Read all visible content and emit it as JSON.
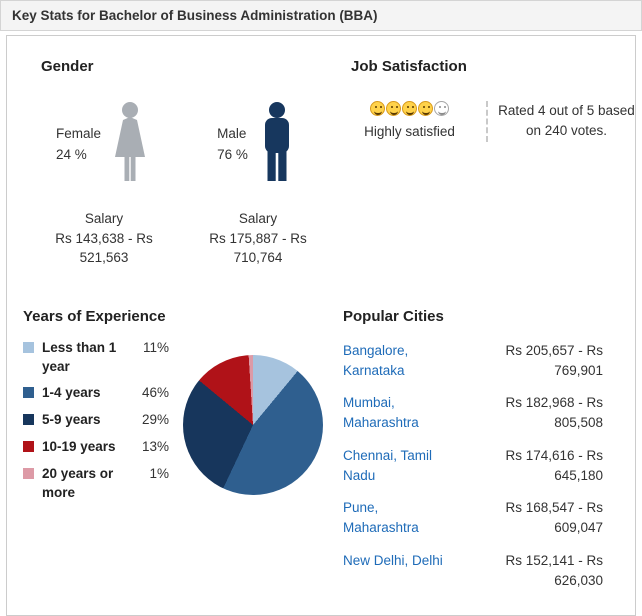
{
  "header": {
    "title": "Key Stats for Bachelor of Business Administration (BBA)"
  },
  "gender": {
    "title": "Gender",
    "female": {
      "label": "Female",
      "percent": "24 %",
      "salary_label": "Salary",
      "salary_range": "Rs 143,638 - Rs 521,563",
      "icon_color": "#a9aeb4"
    },
    "male": {
      "label": "Male",
      "percent": "76 %",
      "salary_label": "Salary",
      "salary_range": "Rs 175,887 - Rs 710,764",
      "icon_color": "#17375e"
    }
  },
  "job_satisfaction": {
    "title": "Job Satisfaction",
    "rating_value": 4,
    "rating_max": 5,
    "rating_label": "Highly satisfied",
    "rating_text": "Rated 4 out of 5 based on 240 votes.",
    "votes": 240
  },
  "experience": {
    "title": "Years of Experience",
    "items": [
      {
        "label": "Less than 1 year",
        "percent": "11%",
        "color": "#a6c3de"
      },
      {
        "label": "1-4 years",
        "percent": "46%",
        "color": "#2f5f8f"
      },
      {
        "label": "5-9 years",
        "percent": "29%",
        "color": "#17365c"
      },
      {
        "label": "10-19 years",
        "percent": "13%",
        "color": "#b01218"
      },
      {
        "label": "20 years or more",
        "percent": "1%",
        "color": "#dd9aa6"
      }
    ]
  },
  "cities": {
    "title": "Popular Cities",
    "rows": [
      {
        "name": "Bangalore, Karnataka",
        "range": "Rs 205,657 - Rs 769,901"
      },
      {
        "name": "Mumbai, Maharashtra",
        "range": "Rs 182,968 - Rs 805,508"
      },
      {
        "name": "Chennai, Tamil Nadu",
        "range": "Rs 174,616 - Rs 645,180"
      },
      {
        "name": "Pune, Maharashtra",
        "range": "Rs 168,547 - Rs 609,047"
      },
      {
        "name": "New Delhi, Delhi",
        "range": "Rs 152,141 - Rs 626,030"
      }
    ]
  },
  "chart_data": {
    "type": "pie",
    "title": "Years of Experience",
    "categories": [
      "Less than 1 year",
      "1-4 years",
      "5-9 years",
      "10-19 years",
      "20 years or more"
    ],
    "values": [
      11,
      46,
      29,
      13,
      1
    ],
    "colors": [
      "#a6c3de",
      "#2f5f8f",
      "#17365c",
      "#b01218",
      "#dd9aa6"
    ],
    "legend_position": "left",
    "start_angle_deg": 0,
    "direction": "clockwise"
  }
}
